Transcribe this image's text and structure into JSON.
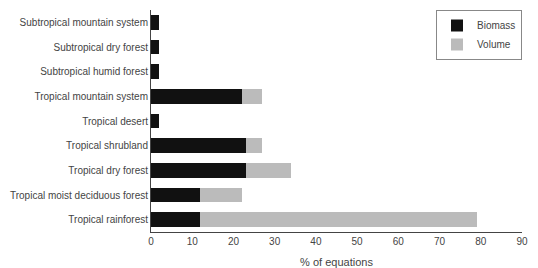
{
  "chart_data": {
    "type": "bar",
    "orientation": "horizontal",
    "stacked": true,
    "categories": [
      "Tropical rainforest",
      "Tropical moist deciduous forest",
      "Tropical dry forest",
      "Tropical shrubland",
      "Tropical desert",
      "Tropical mountain system",
      "Subtropical humid forest",
      "Subtropical dry forest",
      "Subtropical mountain system"
    ],
    "series": [
      {
        "name": "Biomass",
        "color": "#111111",
        "values": [
          12,
          12,
          23,
          23,
          2,
          22,
          2,
          2,
          2
        ]
      },
      {
        "name": "Volume",
        "color": "#bbbbbb",
        "values": [
          67,
          10,
          11,
          4,
          0,
          5,
          0,
          0,
          0
        ]
      }
    ],
    "xlabel": "% of equations",
    "xlim": [
      0,
      90
    ],
    "xticks": [
      0,
      10,
      20,
      30,
      40,
      50,
      60,
      70,
      80,
      90
    ],
    "grid": false,
    "legend": "upper right"
  }
}
